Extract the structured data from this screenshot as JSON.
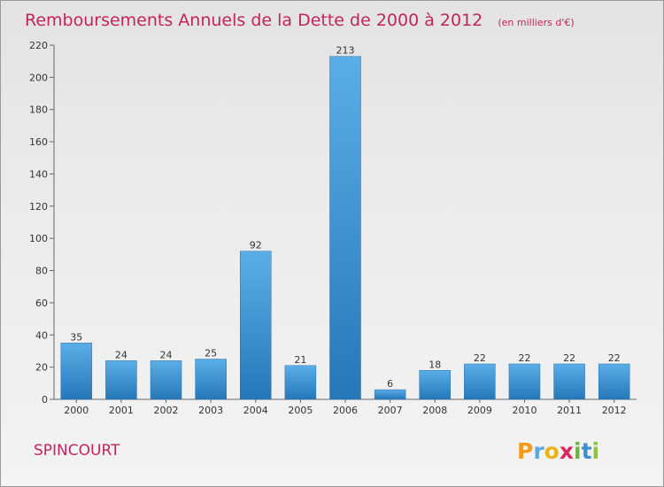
{
  "chart_data": {
    "type": "bar",
    "title": "Remboursements Annuels de la Dette de 2000 à 2012",
    "subtitle": "(en milliers d'€)",
    "xlabel": "",
    "ylabel": "",
    "categories": [
      "2000",
      "2001",
      "2002",
      "2003",
      "2004",
      "2005",
      "2006",
      "2007",
      "2008",
      "2009",
      "2010",
      "2011",
      "2012"
    ],
    "values": [
      35,
      24,
      24,
      25,
      92,
      21,
      213,
      6,
      18,
      22,
      22,
      22,
      22
    ],
    "ylim": [
      0,
      220
    ],
    "yticks": [
      0,
      20,
      40,
      60,
      80,
      100,
      120,
      140,
      160,
      180,
      200,
      220
    ],
    "grid": false,
    "legend": "none",
    "bar_color_light": "#5aaee8",
    "bar_color_dark": "#2677b8"
  },
  "commune": "SPINCOURT",
  "logo": {
    "letters": [
      {
        "char": "P",
        "color": "#f29a1c"
      },
      {
        "char": "r",
        "color": "#5aa9dc"
      },
      {
        "char": "o",
        "color": "#e9b319"
      },
      {
        "char": "x",
        "color": "#d8295f"
      },
      {
        "char": "i",
        "color": "#6db33f"
      },
      {
        "char": "t",
        "color": "#3c8fd0"
      },
      {
        "char": "i",
        "color": "#8cc43f"
      }
    ]
  }
}
